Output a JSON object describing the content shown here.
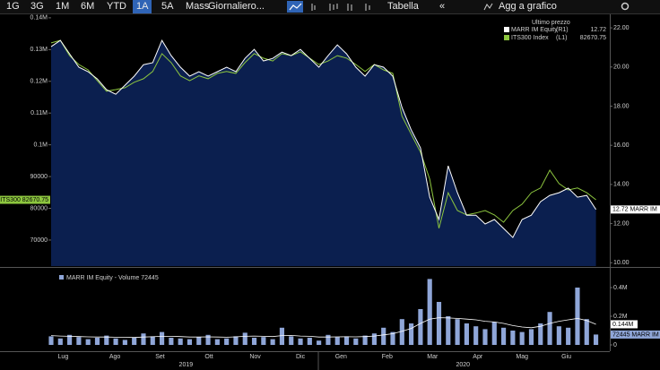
{
  "toolbar": {
    "buttons": [
      "1G",
      "3G",
      "1M",
      "6M",
      "YTD",
      "1A",
      "5A",
      "Mass",
      "Giornaliero..."
    ],
    "selected": 5,
    "table": "Tabella",
    "collapse": "«",
    "add": "Agg a grafico"
  },
  "chart_data": [
    {
      "type": "line",
      "legend_title": "Ultimo prezzo",
      "xlim": [
        0,
        60.5
      ],
      "xticks": [
        {
          "value": 1.3,
          "label": "Lug"
        },
        {
          "value": 6.9,
          "label": "Ago"
        },
        {
          "value": 11.8,
          "label": "Set"
        },
        {
          "value": 17.1,
          "label": "Ott"
        },
        {
          "value": 22.1,
          "label": "Nov"
        },
        {
          "value": 27.0,
          "label": "Dic"
        },
        {
          "value": 31.4,
          "label": "Gen"
        },
        {
          "value": 36.4,
          "label": "Feb"
        },
        {
          "value": 41.3,
          "label": "Mar"
        },
        {
          "value": 46.2,
          "label": "Apr"
        },
        {
          "value": 51.0,
          "label": "Mag"
        },
        {
          "value": 55.8,
          "label": "Giu"
        }
      ],
      "year_ticks": [
        {
          "value": 14.6,
          "label": "2019"
        },
        {
          "value": 44.6,
          "label": "2020"
        }
      ],
      "ylim": [
        61800,
        141100
      ],
      "yticks": [
        70000,
        80000,
        90000,
        {
          "value": 100000,
          "label": "0.1M"
        },
        {
          "value": 110000,
          "label": "0.11M"
        },
        {
          "value": 120000,
          "label": "0.12M"
        },
        {
          "value": 130000,
          "label": "0.13M"
        },
        {
          "value": 140000,
          "label": "0.14M"
        }
      ],
      "y2lim": [
        9.83,
        22.69
      ],
      "y2ticks": [
        {
          "value": 10,
          "label": "10.00"
        },
        {
          "value": 12,
          "label": "12.00"
        },
        {
          "value": 14,
          "label": "14.00"
        },
        {
          "value": 16,
          "label": "16.00"
        },
        {
          "value": 18,
          "label": "18.00"
        },
        {
          "value": 20,
          "label": "20.00"
        },
        {
          "value": 22,
          "label": "22.00"
        }
      ],
      "series": [
        {
          "name": "MARR IM Equity",
          "legend_tag": "(R1)",
          "legend_value": "12.72",
          "axis": "y2",
          "color": "#ffffff",
          "fill": "#0b1f4f",
          "tag": "12.72 MARR IM",
          "values": [
            21.04,
            21.36,
            20.67,
            19.99,
            19.76,
            19.39,
            18.84,
            18.61,
            19.07,
            19.53,
            20.12,
            20.22,
            21.36,
            20.58,
            19.99,
            19.53,
            19.76,
            19.53,
            19.76,
            19.99,
            19.76,
            20.44,
            20.9,
            20.31,
            20.44,
            20.76,
            20.58,
            20.9,
            20.44,
            19.99,
            20.58,
            21.13,
            20.67,
            19.99,
            19.53,
            20.12,
            19.99,
            19.53,
            17.93,
            16.78,
            15.87,
            13.35,
            12.21,
            14.95,
            13.58,
            12.43,
            12.43,
            11.98,
            12.21,
            11.75,
            11.29,
            12.21,
            12.43,
            13.12,
            13.44,
            13.58,
            13.81,
            13.35,
            13.44,
            12.72
          ]
        },
        {
          "name": "ITS300 Index",
          "legend_tag": "(L1)",
          "legend_value": "82670.75",
          "color": "#8dc63f",
          "tag": "ITS300 82670.75",
          "values": [
            132100,
            132900,
            128100,
            125300,
            123600,
            120200,
            116900,
            117400,
            118000,
            119700,
            120800,
            123100,
            128700,
            125900,
            121700,
            120200,
            121700,
            120800,
            122500,
            123100,
            122500,
            125900,
            128700,
            127300,
            126400,
            128700,
            128100,
            129300,
            127300,
            125300,
            126400,
            128100,
            127300,
            125300,
            123100,
            125300,
            123600,
            122500,
            109000,
            103300,
            97700,
            89200,
            73700,
            84900,
            79300,
            77900,
            78500,
            79300,
            77900,
            75600,
            79300,
            81300,
            84900,
            86400,
            92000,
            87800,
            85800,
            86400,
            84900,
            82670.75
          ]
        }
      ]
    },
    {
      "type": "bar",
      "title": "MARR IM Equity - Volume 72445",
      "color": "#8fa6d8",
      "tag": "72445 MARR IM",
      "xlim": [
        0,
        60.5
      ],
      "ylim": [
        -31250,
        518750
      ],
      "yticks": [
        0,
        {
          "value": 200000,
          "label": "0.2M"
        },
        {
          "value": 400000,
          "label": "0.4M"
        }
      ],
      "values": [
        60000,
        45000,
        70000,
        55000,
        40000,
        50000,
        65000,
        45000,
        35000,
        50000,
        80000,
        60000,
        90000,
        50000,
        45000,
        40000,
        55000,
        70000,
        40000,
        45000,
        60000,
        85000,
        50000,
        55000,
        40000,
        120000,
        60000,
        45000,
        50000,
        30000,
        70000,
        55000,
        60000,
        45000,
        65000,
        80000,
        120000,
        90000,
        180000,
        150000,
        250000,
        460000,
        300000,
        200000,
        180000,
        150000,
        130000,
        110000,
        160000,
        120000,
        100000,
        90000,
        110000,
        150000,
        230000,
        130000,
        120000,
        400000,
        180000,
        72445
      ],
      "series": [
        {
          "color": "#ffffff",
          "tag": "0.144M",
          "values": [
            65000,
            62000,
            60000,
            58000,
            56000,
            55000,
            55000,
            54000,
            53000,
            52000,
            55000,
            57000,
            60000,
            60000,
            58000,
            55000,
            55000,
            56000,
            55000,
            54000,
            56000,
            60000,
            62000,
            60000,
            58000,
            65000,
            66000,
            62000,
            60000,
            55000,
            55000,
            56000,
            57000,
            56000,
            58000,
            62000,
            70000,
            78000,
            95000,
            115000,
            150000,
            180000,
            190000,
            188000,
            185000,
            180000,
            175000,
            165000,
            160000,
            150000,
            135000,
            125000,
            120000,
            130000,
            150000,
            165000,
            175000,
            185000,
            170000,
            144000
          ]
        }
      ]
    }
  ]
}
